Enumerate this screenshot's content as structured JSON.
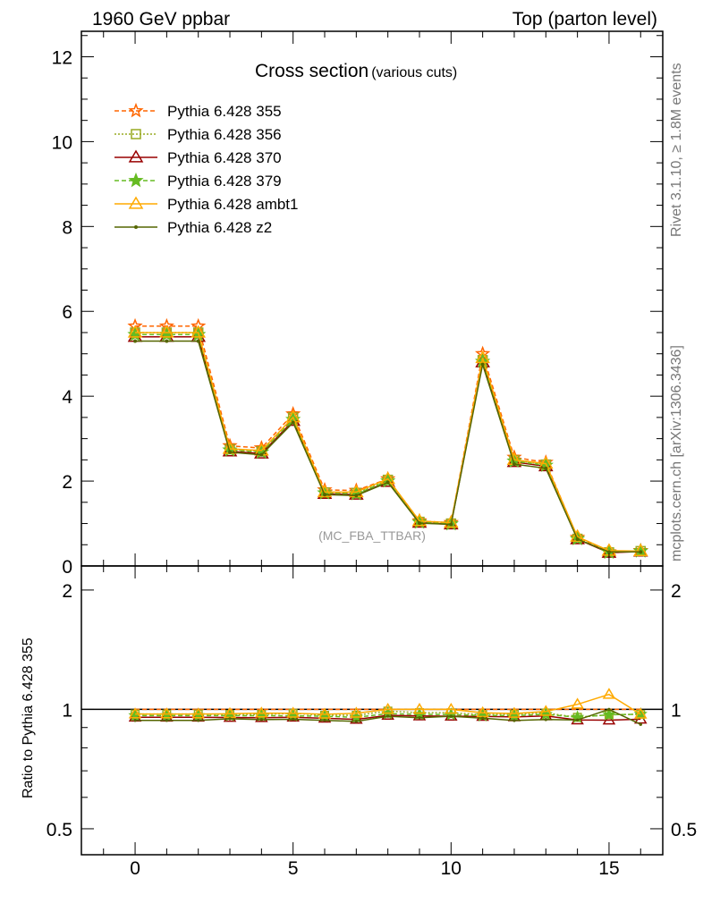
{
  "header": {
    "left": "1960 GeV ppbar",
    "right": "Top (parton level)"
  },
  "side_labels": {
    "rivet": "Rivet 3.1.10, ≥ 1.8M events",
    "mcplots": "mcplots.cern.ch [arXiv:1306.3436]"
  },
  "chart_data": {
    "type": "line",
    "title": "Cross section",
    "subtitle": "(various cuts)",
    "watermark": "(MC_FBA_TTBAR)",
    "xlabel": "",
    "ylabel": "",
    "xlim": [
      -1.7,
      16.7
    ],
    "ylim": [
      0,
      12.6
    ],
    "x_ticks": [
      "0",
      "5",
      "10",
      "15"
    ],
    "y_ticks": [
      "0",
      "2",
      "4",
      "6",
      "8",
      "10",
      "12"
    ],
    "x": [
      0,
      1,
      2,
      3,
      4,
      5,
      6,
      7,
      8,
      9,
      10,
      11,
      12,
      13,
      14,
      15,
      16
    ],
    "legend_position": "top-left",
    "series": [
      {
        "name": "Pythia 6.428 355",
        "color": "#ff6600",
        "dash": "5,3",
        "marker": "star-open",
        "values": [
          5.65,
          5.65,
          5.65,
          2.83,
          2.78,
          3.58,
          1.79,
          1.78,
          2.05,
          1.06,
          1.02,
          5.0,
          2.56,
          2.44,
          0.67,
          0.33,
          0.36
        ]
      },
      {
        "name": "Pythia 6.428 356",
        "color": "#99aa22",
        "dash": "2,2",
        "marker": "square-open",
        "values": [
          5.5,
          5.5,
          5.5,
          2.75,
          2.7,
          3.5,
          1.73,
          1.72,
          2.03,
          1.04,
          1.0,
          4.85,
          2.49,
          2.39,
          0.64,
          0.32,
          0.35
        ]
      },
      {
        "name": "Pythia 6.428 370",
        "color": "#990000",
        "dash": "",
        "marker": "triangle-open",
        "values": [
          5.4,
          5.4,
          5.4,
          2.7,
          2.65,
          3.42,
          1.7,
          1.68,
          1.98,
          1.02,
          0.98,
          4.8,
          2.45,
          2.35,
          0.63,
          0.31,
          0.34
        ]
      },
      {
        "name": "Pythia 6.428 379",
        "color": "#66bb22",
        "dash": "5,3",
        "marker": "star",
        "values": [
          5.45,
          5.45,
          5.45,
          2.73,
          2.68,
          3.45,
          1.72,
          1.7,
          2.0,
          1.03,
          0.99,
          4.82,
          2.47,
          2.37,
          0.64,
          0.32,
          0.35
        ]
      },
      {
        "name": "Pythia 6.428 ambt1",
        "color": "#ffaa00",
        "dash": "",
        "marker": "triangle-open",
        "values": [
          5.5,
          5.5,
          5.5,
          2.76,
          2.72,
          3.5,
          1.74,
          1.74,
          2.05,
          1.06,
          1.02,
          4.9,
          2.5,
          2.41,
          0.69,
          0.36,
          0.35
        ]
      },
      {
        "name": "Pythia 6.428 z2",
        "color": "#556600",
        "dash": "",
        "marker": "dot",
        "values": [
          5.3,
          5.3,
          5.3,
          2.68,
          2.62,
          3.38,
          1.68,
          1.66,
          1.97,
          1.01,
          0.98,
          4.75,
          2.4,
          2.3,
          0.63,
          0.33,
          0.33
        ]
      }
    ],
    "ratio": {
      "ylabel": "Ratio to Pythia 6.428 355",
      "ylim": [
        0.43,
        2.3
      ],
      "y_ticks": [
        "0.5",
        "1",
        "2"
      ]
    }
  }
}
